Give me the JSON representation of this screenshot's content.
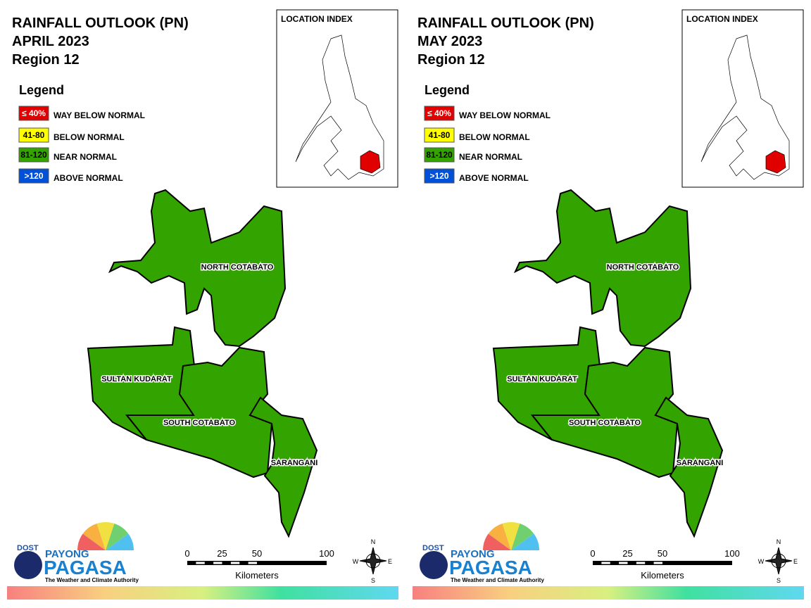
{
  "panels": [
    {
      "title": "RAINFALL OUTLOOK (PN)",
      "month": "APRIL 2023",
      "region": "Region 12",
      "legend_title": "Legend",
      "legend": [
        {
          "range": "≤ 40%",
          "label": "WAY BELOW NORMAL",
          "color": "#e00000"
        },
        {
          "range": "41-80",
          "label": "BELOW NORMAL",
          "color": "#ffff00"
        },
        {
          "range": "81-120",
          "label": "NEAR NORMAL",
          "color": "#33a300"
        },
        {
          "range": ">120",
          "label": "ABOVE NORMAL",
          "color": "#0050d8"
        }
      ],
      "location_index": "LOCATION INDEX",
      "provinces": [
        "NORTH COTABATO",
        "SULTAN KUDARAT",
        "SOUTH COTABATO",
        "SARANGANI"
      ],
      "province_color": "#33a300",
      "scale_ticks": [
        0,
        25,
        50,
        100
      ],
      "scale_unit": "Kilometers",
      "compass": [
        "N",
        "E",
        "S",
        "W"
      ],
      "logo": {
        "agency": "DOST",
        "brand": "PAYONG",
        "name": "PAGASA",
        "tagline": "The Weather and Climate Authority"
      }
    },
    {
      "title": "RAINFALL OUTLOOK (PN)",
      "month": "MAY 2023",
      "region": "Region 12",
      "legend_title": "Legend",
      "legend": [
        {
          "range": "≤ 40%",
          "label": "WAY BELOW NORMAL",
          "color": "#e00000"
        },
        {
          "range": "41-80",
          "label": "BELOW NORMAL",
          "color": "#ffff00"
        },
        {
          "range": "81-120",
          "label": "NEAR NORMAL",
          "color": "#33a300"
        },
        {
          "range": ">120",
          "label": "ABOVE NORMAL",
          "color": "#0050d8"
        }
      ],
      "location_index": "LOCATION INDEX",
      "provinces": [
        "NORTH COTABATO",
        "SULTAN KUDARAT",
        "SOUTH COTABATO",
        "SARANGANI"
      ],
      "province_color": "#33a300",
      "scale_ticks": [
        0,
        25,
        50,
        100
      ],
      "scale_unit": "Kilometers",
      "compass": [
        "N",
        "E",
        "S",
        "W"
      ],
      "logo": {
        "agency": "DOST",
        "brand": "PAYONG",
        "name": "PAGASA",
        "tagline": "The Weather and Climate Authority"
      }
    }
  ]
}
